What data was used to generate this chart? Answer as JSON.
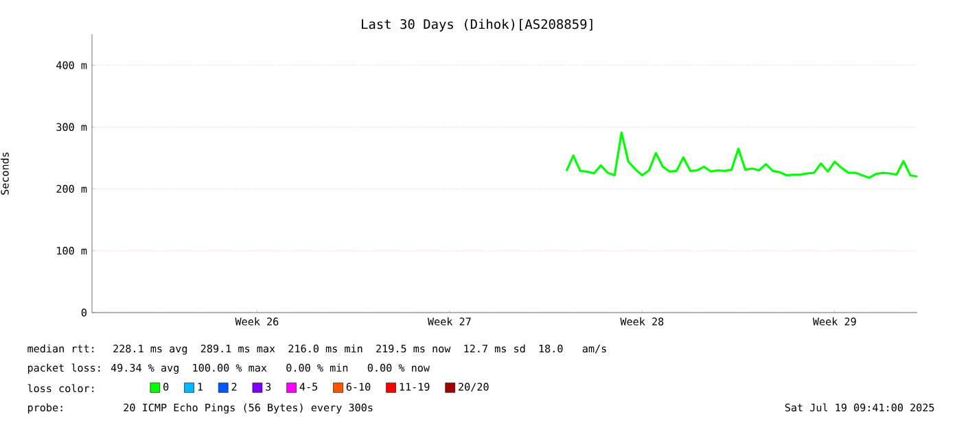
{
  "chart_data": {
    "type": "line",
    "title": "Last 30 Days (Dihok)[AS208859]",
    "ylabel": "Seconds",
    "categories": [
      null,
      null,
      null,
      null,
      null,
      null,
      null,
      null,
      null,
      null,
      null,
      null,
      null,
      null,
      null,
      null,
      null,
      null,
      null,
      null,
      null,
      null,
      null,
      null,
      "Week 26",
      null,
      null,
      null,
      null,
      null,
      null,
      null,
      null,
      null,
      null,
      null,
      null,
      null,
      null,
      null,
      null,
      null,
      null,
      null,
      null,
      null,
      null,
      null,
      null,
      null,
      null,
      null,
      "Week 27",
      null,
      null,
      null,
      null,
      null,
      null,
      null,
      null,
      null,
      null,
      null,
      null,
      null,
      null,
      null,
      null,
      null,
      null,
      null,
      null,
      null,
      null,
      null,
      null,
      null,
      null,
      null,
      "Week 28",
      null,
      null,
      null,
      null,
      null,
      null,
      null,
      null,
      null,
      null,
      null,
      null,
      null,
      null,
      null,
      null,
      null,
      null,
      null,
      null,
      null,
      null,
      null,
      null,
      null,
      null,
      null,
      "Week 29",
      null,
      null,
      null,
      null,
      null,
      null,
      null,
      null,
      null,
      null,
      null,
      null
    ],
    "series": [
      {
        "name": "0",
        "color": "#00ff00",
        "values": [
          null,
          null,
          null,
          null,
          null,
          null,
          null,
          null,
          null,
          null,
          null,
          null,
          null,
          null,
          null,
          null,
          null,
          null,
          null,
          null,
          null,
          null,
          null,
          null,
          null,
          null,
          null,
          null,
          null,
          null,
          null,
          null,
          null,
          null,
          null,
          null,
          null,
          null,
          null,
          null,
          null,
          null,
          null,
          null,
          null,
          null,
          null,
          null,
          null,
          null,
          null,
          null,
          null,
          null,
          null,
          null,
          null,
          null,
          null,
          null,
          null,
          null,
          null,
          null,
          null,
          null,
          null,
          null,
          null,
          229,
          254,
          229,
          228,
          225,
          238,
          226,
          222,
          291,
          244,
          232,
          222,
          230,
          258,
          236,
          228,
          229,
          251,
          229,
          230,
          236,
          228,
          230,
          229,
          231,
          265,
          231,
          233,
          230,
          240,
          229,
          227,
          222,
          223,
          223,
          225,
          226,
          241,
          228,
          244,
          234,
          226,
          226,
          222,
          218,
          224,
          226,
          225,
          223,
          245,
          222,
          220
        ]
      },
      {
        "name": "1",
        "color": "#00b8ff",
        "values": [
          null,
          null,
          null,
          null,
          null,
          null,
          null,
          null,
          null,
          null,
          null,
          null,
          null,
          null,
          null,
          null,
          null,
          null,
          null,
          null,
          null,
          null,
          null,
          null,
          null,
          null,
          null,
          null,
          null,
          null,
          null,
          null,
          null,
          null,
          null,
          null,
          null,
          null,
          null,
          null,
          null,
          null,
          null,
          null,
          null,
          null,
          null,
          null,
          null,
          null,
          null,
          null,
          null,
          null,
          null,
          null,
          null,
          null,
          null,
          null,
          null,
          null,
          null,
          null,
          null,
          null,
          null,
          null,
          null,
          null,
          null,
          null,
          null,
          null,
          null,
          null,
          null,
          null,
          null,
          null,
          null,
          null,
          null,
          null,
          null,
          null,
          null,
          null,
          null,
          null,
          null,
          null,
          null,
          null,
          null,
          null,
          null,
          null,
          null,
          null,
          null,
          null,
          null,
          null,
          null,
          null,
          null,
          null,
          null,
          null,
          null,
          null,
          null,
          null,
          null,
          null,
          null,
          null,
          null,
          null,
          null
        ]
      },
      {
        "name": "2",
        "color": "#0059ff",
        "values": [
          null,
          null,
          null,
          null,
          null,
          null,
          null,
          null,
          null,
          null,
          null,
          null,
          null,
          null,
          null,
          null,
          null,
          null,
          null,
          null,
          null,
          null,
          null,
          null,
          null,
          null,
          null,
          null,
          null,
          null,
          null,
          null,
          null,
          null,
          null,
          null,
          null,
          null,
          null,
          null,
          null,
          null,
          null,
          null,
          null,
          null,
          null,
          null,
          null,
          null,
          null,
          null,
          null,
          null,
          null,
          null,
          null,
          null,
          null,
          null,
          null,
          null,
          null,
          null,
          null,
          null,
          null,
          null,
          null,
          null,
          null,
          null,
          null,
          null,
          null,
          null,
          null,
          null,
          null,
          null,
          null,
          null,
          null,
          null,
          null,
          null,
          null,
          null,
          null,
          null,
          null,
          null,
          null,
          null,
          null,
          null,
          null,
          null,
          null,
          null,
          null,
          null,
          null,
          null,
          null,
          null,
          null,
          null,
          null,
          null,
          null,
          null,
          null,
          null,
          null,
          null,
          null,
          null,
          null,
          null,
          null
        ]
      },
      {
        "name": "3",
        "color": "#7e00ff",
        "values": [
          null,
          null,
          null,
          null,
          null,
          null,
          null,
          null,
          null,
          null,
          null,
          null,
          null,
          null,
          null,
          null,
          null,
          null,
          null,
          null,
          null,
          null,
          null,
          null,
          null,
          null,
          null,
          null,
          null,
          null,
          null,
          null,
          null,
          null,
          null,
          null,
          null,
          null,
          null,
          null,
          null,
          null,
          null,
          null,
          null,
          null,
          null,
          null,
          null,
          null,
          null,
          null,
          null,
          null,
          null,
          null,
          null,
          null,
          null,
          null,
          null,
          null,
          null,
          null,
          null,
          null,
          null,
          null,
          null,
          null,
          null,
          null,
          null,
          null,
          null,
          null,
          null,
          null,
          null,
          null,
          null,
          null,
          null,
          null,
          null,
          null,
          null,
          null,
          null,
          null,
          null,
          null,
          null,
          null,
          null,
          null,
          null,
          null,
          null,
          null,
          null,
          null,
          null,
          null,
          null,
          null,
          null,
          null,
          null,
          null,
          null,
          null,
          null,
          null,
          null,
          null,
          null,
          null,
          null,
          null,
          null
        ]
      },
      {
        "name": "4-5",
        "color": "#ff00ff",
        "values": [
          null,
          null,
          null,
          null,
          null,
          null,
          null,
          null,
          null,
          null,
          null,
          null,
          null,
          null,
          null,
          null,
          null,
          null,
          null,
          null,
          null,
          null,
          null,
          null,
          null,
          null,
          null,
          null,
          null,
          null,
          null,
          null,
          null,
          null,
          null,
          null,
          null,
          null,
          null,
          null,
          null,
          null,
          null,
          null,
          null,
          null,
          null,
          null,
          null,
          null,
          null,
          null,
          null,
          null,
          null,
          null,
          null,
          null,
          null,
          null,
          null,
          null,
          null,
          null,
          null,
          null,
          null,
          null,
          null,
          null,
          null,
          null,
          null,
          null,
          null,
          null,
          null,
          null,
          null,
          null,
          null,
          null,
          null,
          null,
          null,
          null,
          null,
          null,
          null,
          null,
          null,
          null,
          null,
          null,
          null,
          null,
          null,
          null,
          null,
          null,
          null,
          null,
          null,
          null,
          null,
          null,
          null,
          null,
          null,
          null,
          null,
          null,
          null,
          null,
          null,
          null,
          null,
          null,
          null,
          null,
          null
        ]
      },
      {
        "name": "6-10",
        "color": "#ff5500",
        "values": [
          null,
          null,
          null,
          null,
          null,
          null,
          null,
          null,
          null,
          null,
          null,
          null,
          null,
          null,
          null,
          null,
          null,
          null,
          null,
          null,
          null,
          null,
          null,
          null,
          null,
          null,
          null,
          null,
          null,
          null,
          null,
          null,
          null,
          null,
          null,
          null,
          null,
          null,
          null,
          null,
          null,
          null,
          null,
          null,
          null,
          null,
          null,
          null,
          null,
          null,
          null,
          null,
          null,
          null,
          null,
          null,
          null,
          null,
          null,
          null,
          null,
          null,
          null,
          null,
          null,
          null,
          null,
          null,
          null,
          null,
          null,
          null,
          null,
          null,
          null,
          null,
          null,
          null,
          null,
          null,
          null,
          null,
          null,
          null,
          null,
          null,
          null,
          null,
          null,
          null,
          null,
          null,
          null,
          null,
          null,
          null,
          null,
          null,
          null,
          null,
          null,
          null,
          null,
          null,
          null,
          null,
          null,
          null,
          null,
          null,
          null,
          null,
          null,
          null,
          null,
          null,
          null,
          null,
          null,
          null,
          null
        ]
      },
      {
        "name": "11-19",
        "color": "#ff0000",
        "values": [
          null,
          null,
          null,
          null,
          null,
          null,
          null,
          null,
          null,
          null,
          null,
          null,
          null,
          null,
          null,
          null,
          null,
          null,
          null,
          null,
          null,
          null,
          null,
          null,
          null,
          null,
          null,
          null,
          null,
          null,
          null,
          null,
          null,
          null,
          null,
          null,
          null,
          null,
          null,
          null,
          null,
          null,
          null,
          null,
          null,
          null,
          null,
          null,
          null,
          null,
          null,
          null,
          null,
          null,
          null,
          null,
          null,
          null,
          null,
          null,
          null,
          null,
          null,
          null,
          null,
          null,
          null,
          null,
          null,
          null,
          null,
          null,
          null,
          null,
          null,
          null,
          null,
          null,
          null,
          null,
          null,
          null,
          null,
          null,
          null,
          null,
          null,
          null,
          null,
          null,
          null,
          null,
          null,
          null,
          null,
          null,
          null,
          null,
          null,
          null,
          null,
          null,
          null,
          null,
          null,
          null,
          null,
          null,
          null,
          null,
          null,
          null,
          null,
          null,
          null,
          null,
          null,
          null,
          null,
          null,
          null
        ]
      },
      {
        "name": "20/20",
        "color": "#a10000",
        "values": [
          null,
          null,
          null,
          null,
          null,
          null,
          null,
          null,
          null,
          null,
          null,
          null,
          null,
          null,
          null,
          null,
          null,
          null,
          null,
          null,
          null,
          null,
          null,
          null,
          null,
          null,
          null,
          null,
          null,
          null,
          null,
          null,
          null,
          null,
          null,
          null,
          null,
          null,
          null,
          null,
          null,
          null,
          null,
          null,
          null,
          null,
          null,
          null,
          null,
          null,
          null,
          null,
          null,
          null,
          null,
          null,
          null,
          null,
          null,
          null,
          null,
          null,
          null,
          null,
          null,
          null,
          null,
          null,
          null,
          null,
          null,
          null,
          null,
          null,
          null,
          null,
          null,
          null,
          null,
          null,
          null,
          null,
          null,
          null,
          null,
          null,
          null,
          null,
          null,
          null,
          null,
          null,
          null,
          null,
          null,
          null,
          null,
          null,
          null,
          null,
          null,
          null,
          null,
          null,
          null,
          null,
          null,
          null,
          null,
          null,
          null,
          null,
          null,
          null,
          null,
          null,
          null,
          null,
          null,
          null,
          null
        ]
      }
    ],
    "ylim": [
      0,
      450
    ],
    "yticks": [
      0,
      {
        "value": 100,
        "label": "100 m"
      },
      {
        "value": 200,
        "label": "200 m"
      },
      {
        "value": 300,
        "label": "300 m"
      },
      {
        "value": 400,
        "label": "400 m"
      }
    ],
    "grid": "y",
    "legend": "bottom",
    "annotations": [
      "median rtt:  228.1 ms avg  289.1 ms max  216.0 ms min  219.5 ms now  12.7 ms sd  18.0   am/s",
      "packet loss: 49.34 % avg  100.00 % max   0.00 % min   0.00 % now",
      "loss color:",
      "probe:       20 ICMP Echo Pings (56 Bytes) every 300s",
      "Sat Jul 19 09:41:00 2025"
    ]
  }
}
